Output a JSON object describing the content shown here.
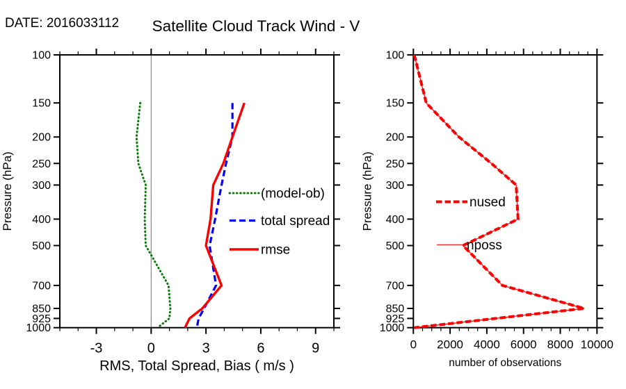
{
  "header": {
    "date_label": "DATE: 2016033112",
    "title": "Satellite Cloud Track Wind - V"
  },
  "colors": {
    "bias_green": "#077e07",
    "spread_blue": "#0202fa",
    "rmse_red": "#fa0202",
    "obs_red": "#fa0202",
    "zero_line_gray": "#888888",
    "axis_black": "#000000",
    "background": "#ffffff"
  },
  "chart_data": [
    {
      "type": "line",
      "panel": "left",
      "xlabel": "RMS, Total Spread, Bias ( m/s )",
      "ylabel": "Pressure (hPa)",
      "x_range": [
        -5,
        10
      ],
      "x_ticks": [
        -3,
        0,
        3,
        6,
        9
      ],
      "x_minor_step": 1,
      "y_scale": "log",
      "y_range": [
        100,
        1000
      ],
      "y_ticks": [
        100,
        150,
        200,
        250,
        300,
        400,
        500,
        700,
        850,
        925,
        1000
      ],
      "zero_reference_line": true,
      "grid": false,
      "legend_position": "inside-center-right",
      "levels_hpa": [
        150,
        200,
        250,
        300,
        400,
        500,
        700,
        850,
        925,
        1000
      ],
      "series": [
        {
          "name": "(model-ob)",
          "color": "#077e07",
          "style": "dotted",
          "values": [
            -0.6,
            -0.8,
            -0.7,
            -0.3,
            -0.35,
            -0.3,
            0.95,
            1.05,
            1.0,
            0.35
          ]
        },
        {
          "name": "total spread",
          "color": "#0202fa",
          "style": "dashed",
          "values": [
            4.45,
            4.45,
            4.1,
            3.85,
            3.5,
            3.2,
            3.55,
            2.9,
            2.6,
            2.5
          ]
        },
        {
          "name": "rmse",
          "color": "#fa0202",
          "style": "solid",
          "values": [
            5.1,
            4.45,
            3.95,
            3.4,
            3.25,
            3.0,
            3.85,
            2.8,
            2.1,
            1.85
          ]
        }
      ]
    },
    {
      "type": "line",
      "panel": "right",
      "xlabel": "number of observations",
      "ylabel": "Pressure (hPa)",
      "x_range": [
        0,
        10000
      ],
      "x_ticks": [
        0,
        2000,
        4000,
        6000,
        8000,
        10000
      ],
      "x_minor_step": 500,
      "y_scale": "log",
      "y_range": [
        100,
        1000
      ],
      "y_ticks": [
        100,
        150,
        200,
        250,
        300,
        400,
        500,
        700,
        850,
        925,
        1000
      ],
      "zero_reference_line": false,
      "grid": false,
      "legend_position": "inside-center-left",
      "levels_hpa": [
        100,
        150,
        200,
        250,
        300,
        400,
        500,
        700,
        850,
        925,
        1000
      ],
      "series": [
        {
          "name": "nposs",
          "color": "#fa0202",
          "style": "thin-solid",
          "values": [
            50,
            700,
            2480,
            4250,
            5600,
            5700,
            2700,
            4850,
            9300,
            4480,
            50
          ]
        },
        {
          "name": "nused",
          "color": "#fa0202",
          "style": "dashed-thick",
          "values": [
            50,
            700,
            2480,
            4250,
            5600,
            5700,
            2700,
            4850,
            9300,
            4480,
            50
          ]
        }
      ]
    }
  ]
}
